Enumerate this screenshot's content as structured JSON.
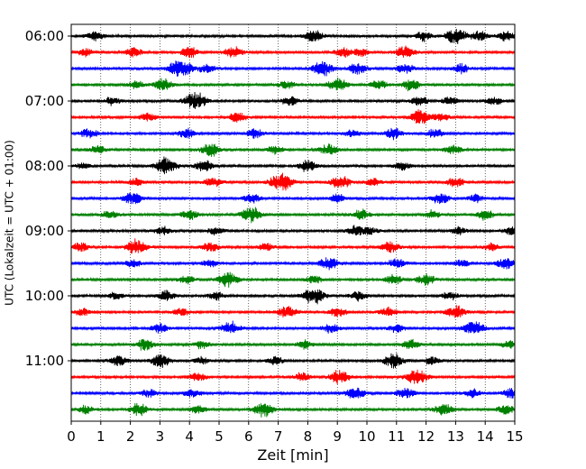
{
  "chart_data": {
    "type": "line",
    "subtype": "helicorder",
    "xlabel": "Zeit  [min]",
    "ylabel": "UTC (Lokalzeit = UTC + 01:00)",
    "xlim": [
      0,
      15
    ],
    "x_ticks": [
      0,
      1,
      2,
      3,
      4,
      5,
      6,
      7,
      8,
      9,
      10,
      11,
      12,
      13,
      14,
      15
    ],
    "y_tick_labels": [
      "06:00",
      "07:00",
      "08:00",
      "09:00",
      "10:00",
      "11:00"
    ],
    "y_tick_rows": [
      0,
      4,
      8,
      12,
      16,
      20
    ],
    "row_minutes": 15,
    "grid_x": true,
    "trace_colors": [
      "#000000",
      "#ff0000",
      "#0000ff",
      "#008000"
    ],
    "rows": [
      {
        "start": "06:00",
        "bursts": [
          [
            0.8,
            6
          ],
          [
            8.2,
            8
          ],
          [
            11.9,
            6
          ],
          [
            13.0,
            10
          ],
          [
            13.8,
            6
          ],
          [
            14.7,
            6
          ]
        ]
      },
      {
        "start": "06:15",
        "bursts": [
          [
            0.5,
            5
          ],
          [
            2.1,
            6
          ],
          [
            4.0,
            7
          ],
          [
            5.5,
            7
          ],
          [
            9.2,
            6
          ],
          [
            9.8,
            5
          ],
          [
            11.3,
            8
          ]
        ]
      },
      {
        "start": "06:30",
        "bursts": [
          [
            3.5,
            6
          ],
          [
            3.8,
            9
          ],
          [
            4.6,
            6
          ],
          [
            8.5,
            9
          ],
          [
            9.7,
            7
          ],
          [
            11.3,
            6
          ],
          [
            13.2,
            6
          ]
        ]
      },
      {
        "start": "06:45",
        "bursts": [
          [
            2.2,
            5
          ],
          [
            3.1,
            7
          ],
          [
            7.3,
            5
          ],
          [
            9.0,
            8
          ],
          [
            10.4,
            6
          ],
          [
            11.5,
            7
          ]
        ]
      },
      {
        "start": "07:00",
        "bursts": [
          [
            1.4,
            5
          ],
          [
            4.2,
            11
          ],
          [
            7.4,
            6
          ],
          [
            11.8,
            6
          ],
          [
            12.8,
            5
          ],
          [
            14.3,
            5
          ]
        ]
      },
      {
        "start": "07:15",
        "bursts": [
          [
            2.6,
            5
          ],
          [
            5.6,
            7
          ],
          [
            11.8,
            9
          ],
          [
            12.5,
            5
          ]
        ]
      },
      {
        "start": "07:30",
        "bursts": [
          [
            0.6,
            6
          ],
          [
            3.9,
            6
          ],
          [
            6.2,
            6
          ],
          [
            9.5,
            5
          ],
          [
            10.9,
            7
          ],
          [
            12.3,
            6
          ]
        ]
      },
      {
        "start": "07:45",
        "bursts": [
          [
            0.9,
            5
          ],
          [
            4.7,
            8
          ],
          [
            6.9,
            5
          ],
          [
            8.7,
            7
          ],
          [
            12.9,
            6
          ]
        ]
      },
      {
        "start": "08:00",
        "bursts": [
          [
            0.4,
            4
          ],
          [
            3.2,
            10
          ],
          [
            4.5,
            7
          ],
          [
            8.0,
            7
          ],
          [
            11.2,
            5
          ]
        ]
      },
      {
        "start": "08:15",
        "bursts": [
          [
            2.2,
            5
          ],
          [
            4.8,
            6
          ],
          [
            7.1,
            11
          ],
          [
            9.1,
            8
          ],
          [
            10.2,
            5
          ],
          [
            13.0,
            6
          ]
        ]
      },
      {
        "start": "08:30",
        "bursts": [
          [
            2.1,
            8
          ],
          [
            6.1,
            6
          ],
          [
            9.0,
            5
          ],
          [
            12.5,
            7
          ],
          [
            13.7,
            5
          ]
        ]
      },
      {
        "start": "08:45",
        "bursts": [
          [
            1.3,
            5
          ],
          [
            4.0,
            6
          ],
          [
            6.1,
            9
          ],
          [
            9.8,
            6
          ],
          [
            12.2,
            5
          ],
          [
            14.0,
            6
          ]
        ]
      },
      {
        "start": "09:00",
        "bursts": [
          [
            3.1,
            5
          ],
          [
            4.9,
            5
          ],
          [
            9.6,
            6
          ],
          [
            10.1,
            5
          ],
          [
            13.1,
            5
          ],
          [
            15.0,
            7
          ]
        ]
      },
      {
        "start": "09:15",
        "bursts": [
          [
            0.3,
            6
          ],
          [
            2.2,
            9
          ],
          [
            4.7,
            6
          ],
          [
            6.6,
            5
          ],
          [
            10.8,
            7
          ],
          [
            14.2,
            5
          ]
        ]
      },
      {
        "start": "09:30",
        "bursts": [
          [
            2.1,
            5
          ],
          [
            4.7,
            5
          ],
          [
            8.7,
            8
          ],
          [
            11.0,
            6
          ],
          [
            13.2,
            5
          ],
          [
            14.7,
            8
          ]
        ]
      },
      {
        "start": "09:45",
        "bursts": [
          [
            3.9,
            5
          ],
          [
            5.3,
            9
          ],
          [
            8.2,
            5
          ],
          [
            10.9,
            6
          ],
          [
            12.0,
            7
          ]
        ]
      },
      {
        "start": "10:00",
        "bursts": [
          [
            1.5,
            4
          ],
          [
            3.2,
            6
          ],
          [
            4.9,
            5
          ],
          [
            8.2,
            10
          ],
          [
            9.7,
            6
          ],
          [
            12.8,
            5
          ]
        ]
      },
      {
        "start": "10:15",
        "bursts": [
          [
            0.4,
            5
          ],
          [
            3.7,
            5
          ],
          [
            7.3,
            7
          ],
          [
            9.0,
            6
          ],
          [
            10.7,
            6
          ],
          [
            13.0,
            8
          ]
        ]
      },
      {
        "start": "10:30",
        "bursts": [
          [
            3.0,
            6
          ],
          [
            5.4,
            8
          ],
          [
            8.8,
            6
          ],
          [
            11.0,
            5
          ],
          [
            13.6,
            9
          ]
        ]
      },
      {
        "start": "10:45",
        "bursts": [
          [
            2.5,
            7
          ],
          [
            4.4,
            5
          ],
          [
            7.9,
            5
          ],
          [
            11.5,
            6
          ],
          [
            14.8,
            5
          ]
        ]
      },
      {
        "start": "11:00",
        "bursts": [
          [
            1.6,
            7
          ],
          [
            3.0,
            8
          ],
          [
            4.4,
            5
          ],
          [
            6.9,
            5
          ],
          [
            10.9,
            9
          ],
          [
            12.2,
            5
          ]
        ]
      },
      {
        "start": "11:15",
        "bursts": [
          [
            4.3,
            5
          ],
          [
            7.8,
            5
          ],
          [
            9.1,
            9
          ],
          [
            11.7,
            10
          ]
        ]
      },
      {
        "start": "11:30",
        "bursts": [
          [
            2.6,
            5
          ],
          [
            4.1,
            6
          ],
          [
            9.6,
            8
          ],
          [
            11.3,
            7
          ],
          [
            13.6,
            5
          ],
          [
            14.9,
            6
          ]
        ]
      },
      {
        "start": "11:45",
        "bursts": [
          [
            0.5,
            5
          ],
          [
            2.3,
            8
          ],
          [
            4.3,
            5
          ],
          [
            6.5,
            9
          ],
          [
            12.6,
            8
          ],
          [
            14.7,
            6
          ]
        ]
      }
    ]
  }
}
